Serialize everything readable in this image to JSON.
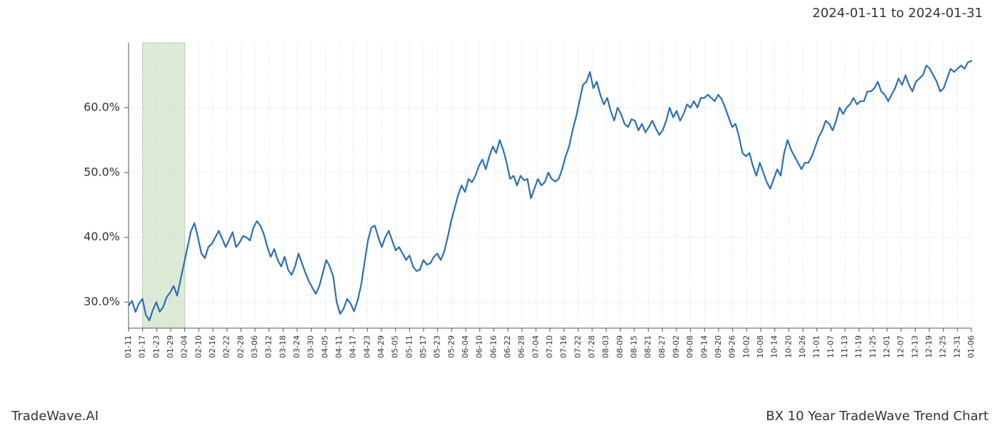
{
  "header": {
    "date_range": "2024-01-11 to 2024-01-31"
  },
  "footer": {
    "left": "TradeWave.AI",
    "right": "BX 10 Year TradeWave Trend Chart"
  },
  "chart": {
    "type": "line",
    "background_color": "#ffffff",
    "line_color": "#2c6fb2",
    "line_width": 2.2,
    "grid_color": "#b8b8b8",
    "grid_dash": "1 3",
    "axis_color": "#555555",
    "band_fill": "#dcead6",
    "band_border": "#b8d3b1",
    "ylim": [
      26,
      70
    ],
    "yticks": [
      30,
      40,
      50,
      60
    ],
    "ytick_labels": [
      "30.0%",
      "40.0%",
      "50.0%",
      "60.0%"
    ],
    "label_fontsize": 16,
    "xtick_fontsize": 11,
    "xticks": [
      "01-11",
      "01-17",
      "01-23",
      "01-29",
      "02-04",
      "02-10",
      "02-16",
      "02-22",
      "02-28",
      "03-06",
      "03-12",
      "03-18",
      "03-24",
      "03-30",
      "04-05",
      "04-11",
      "04-17",
      "04-23",
      "04-29",
      "05-05",
      "05-11",
      "05-17",
      "05-23",
      "05-29",
      "06-04",
      "06-10",
      "06-16",
      "06-22",
      "06-28",
      "07-04",
      "07-10",
      "07-16",
      "07-22",
      "07-28",
      "08-03",
      "08-09",
      "08-15",
      "08-21",
      "08-27",
      "09-02",
      "09-08",
      "09-14",
      "09-20",
      "09-26",
      "10-02",
      "10-08",
      "10-14",
      "10-20",
      "10-26",
      "11-01",
      "11-07",
      "11-13",
      "11-19",
      "11-25",
      "12-01",
      "12-07",
      "12-13",
      "12-19",
      "12-25",
      "12-31",
      "01-06"
    ],
    "band_start_idx": 1,
    "band_end_idx": 4,
    "values_per_tick": 4,
    "values": [
      29.5,
      30.2,
      28.5,
      29.8,
      30.5,
      28.0,
      27.2,
      28.8,
      30.0,
      28.5,
      29.3,
      30.8,
      31.5,
      32.5,
      31.0,
      33.5,
      36.0,
      38.5,
      41.0,
      42.2,
      40.0,
      37.5,
      36.8,
      38.5,
      39.0,
      40.0,
      41.0,
      39.8,
      38.5,
      39.6,
      40.8,
      38.5,
      39.2,
      40.2,
      40.0,
      39.5,
      41.5,
      42.5,
      41.8,
      40.5,
      38.5,
      37.0,
      38.2,
      36.5,
      35.5,
      37.0,
      35.0,
      34.2,
      35.5,
      37.5,
      36.0,
      34.5,
      33.2,
      32.2,
      31.3,
      32.5,
      34.5,
      36.5,
      35.5,
      34.0,
      30.0,
      28.2,
      29.0,
      30.5,
      29.8,
      28.6,
      30.2,
      32.5,
      36.0,
      39.5,
      41.5,
      41.8,
      40.0,
      38.5,
      40.0,
      41.0,
      39.5,
      38.0,
      38.5,
      37.5,
      36.5,
      37.2,
      35.5,
      34.8,
      35.0,
      36.5,
      35.8,
      36.0,
      37.0,
      37.5,
      36.5,
      37.8,
      40.0,
      42.5,
      44.5,
      46.5,
      48.0,
      47.0,
      49.0,
      48.5,
      49.5,
      51.0,
      52.0,
      50.5,
      52.5,
      54.0,
      53.0,
      55.0,
      53.5,
      51.5,
      49.0,
      49.5,
      48.0,
      49.5,
      48.8,
      49.0,
      46.0,
      47.5,
      49.0,
      48.0,
      48.5,
      50.0,
      49.0,
      48.6,
      49.0,
      50.5,
      52.5,
      54.0,
      56.5,
      58.5,
      61.0,
      63.5,
      64.0,
      65.5,
      63.0,
      64.0,
      62.0,
      60.5,
      61.5,
      59.5,
      58.0,
      60.0,
      59.0,
      57.5,
      57.0,
      58.2,
      58.0,
      56.5,
      57.5,
      56.2,
      57.0,
      58.0,
      56.8,
      55.8,
      56.5,
      58.0,
      60.0,
      58.5,
      59.5,
      58.0,
      59.0,
      60.5,
      60.0,
      61.0,
      60.0,
      61.5,
      61.5,
      62.0,
      61.5,
      61.0,
      62.0,
      61.3,
      60.0,
      58.5,
      57.0,
      57.5,
      55.5,
      53.0,
      52.5,
      53.0,
      51.0,
      49.5,
      51.5,
      50.0,
      48.5,
      47.5,
      49.0,
      50.5,
      49.5,
      53.0,
      55.0,
      53.5,
      52.5,
      51.5,
      50.5,
      51.5,
      51.5,
      52.5,
      54.0,
      55.5,
      56.5,
      58.0,
      57.5,
      56.5,
      58.0,
      60.0,
      59.0,
      60.0,
      60.5,
      61.5,
      60.5,
      61.0,
      61.0,
      62.5,
      62.5,
      63.0,
      64.0,
      62.5,
      62.0,
      61.0,
      62.0,
      63.0,
      64.5,
      63.5,
      65.0,
      63.5,
      62.5,
      64.0,
      64.5,
      65.0,
      66.5,
      66.0,
      65.0,
      64.0,
      62.5,
      63.0,
      64.5,
      66.0,
      65.5,
      66.0,
      66.5,
      66.0,
      67.0,
      67.2
    ]
  }
}
